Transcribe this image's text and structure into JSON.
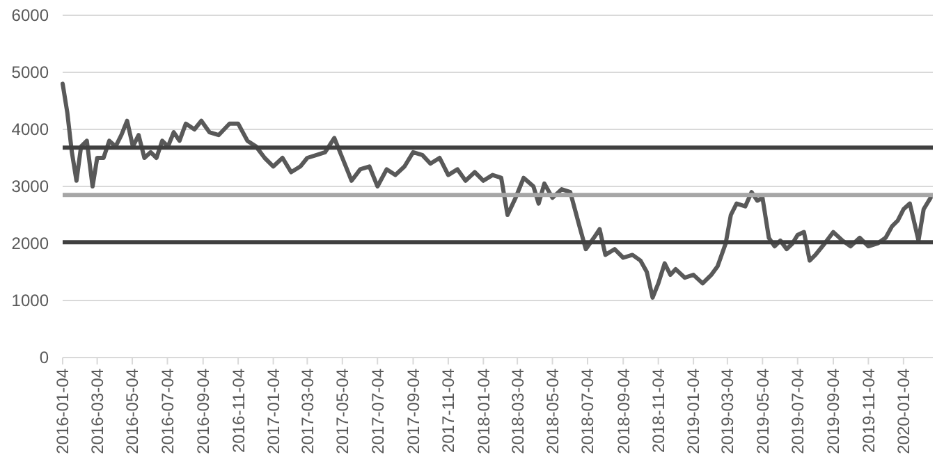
{
  "chart_data": {
    "type": "line",
    "xlim": [
      "2016-01-04",
      "2020-02-24"
    ],
    "ylim": [
      0,
      6000
    ],
    "yticks": [
      0,
      1000,
      2000,
      3000,
      4000,
      5000,
      6000
    ],
    "xticks": [
      "2016-01-04",
      "2016-03-04",
      "2016-05-04",
      "2016-07-04",
      "2016-09-04",
      "2016-11-04",
      "2017-01-04",
      "2017-03-04",
      "2017-05-04",
      "2017-07-04",
      "2017-09-04",
      "2017-11-04",
      "2018-01-04",
      "2018-03-04",
      "2018-05-04",
      "2018-07-04",
      "2018-09-04",
      "2018-11-04",
      "2019-01-04",
      "2019-03-04",
      "2019-05-04",
      "2019-07-04",
      "2019-09-04",
      "2019-11-04",
      "2020-01-04"
    ],
    "grid": "y",
    "marker": "none",
    "line_style": "solid",
    "ref_lines": [
      {
        "axis": "y",
        "value": 3680,
        "color": "#404040"
      },
      {
        "axis": "y",
        "value": 2850,
        "color": "#a6a6a6"
      },
      {
        "axis": "y",
        "value": 2020,
        "color": "#404040"
      }
    ],
    "series": [
      {
        "color": "#595959",
        "x": [
          "2016-01-04",
          "2016-01-12",
          "2016-01-20",
          "2016-01-28",
          "2016-02-05",
          "2016-02-15",
          "2016-02-25",
          "2016-03-04",
          "2016-03-15",
          "2016-03-25",
          "2016-04-05",
          "2016-04-15",
          "2016-04-25",
          "2016-05-05",
          "2016-05-15",
          "2016-05-25",
          "2016-06-05",
          "2016-06-15",
          "2016-06-25",
          "2016-07-05",
          "2016-07-15",
          "2016-07-25",
          "2016-08-05",
          "2016-08-20",
          "2016-09-01",
          "2016-09-15",
          "2016-10-01",
          "2016-10-20",
          "2016-11-04",
          "2016-11-20",
          "2016-12-05",
          "2016-12-20",
          "2017-01-04",
          "2017-01-20",
          "2017-02-04",
          "2017-02-20",
          "2017-03-04",
          "2017-03-20",
          "2017-04-04",
          "2017-04-20",
          "2017-05-04",
          "2017-05-20",
          "2017-06-04",
          "2017-06-20",
          "2017-07-04",
          "2017-07-20",
          "2017-08-04",
          "2017-08-20",
          "2017-09-04",
          "2017-09-20",
          "2017-10-04",
          "2017-10-20",
          "2017-11-04",
          "2017-11-20",
          "2017-12-04",
          "2017-12-20",
          "2018-01-04",
          "2018-01-20",
          "2018-02-04",
          "2018-02-15",
          "2018-03-01",
          "2018-03-15",
          "2018-04-01",
          "2018-04-10",
          "2018-04-20",
          "2018-05-04",
          "2018-05-20",
          "2018-06-04",
          "2018-06-20",
          "2018-07-01",
          "2018-07-15",
          "2018-07-25",
          "2018-08-04",
          "2018-08-20",
          "2018-09-04",
          "2018-09-20",
          "2018-10-04",
          "2018-10-15",
          "2018-10-25",
          "2018-11-04",
          "2018-11-15",
          "2018-11-25",
          "2018-12-04",
          "2018-12-20",
          "2019-01-04",
          "2019-01-20",
          "2019-02-04",
          "2019-02-15",
          "2019-03-01",
          "2019-03-10",
          "2019-03-20",
          "2019-04-04",
          "2019-04-15",
          "2019-04-25",
          "2019-05-04",
          "2019-05-15",
          "2019-05-25",
          "2019-06-04",
          "2019-06-15",
          "2019-06-25",
          "2019-07-04",
          "2019-07-15",
          "2019-07-25",
          "2019-08-04",
          "2019-08-20",
          "2019-09-04",
          "2019-09-20",
          "2019-10-04",
          "2019-10-20",
          "2019-11-04",
          "2019-11-20",
          "2019-12-04",
          "2019-12-15",
          "2019-12-25",
          "2020-01-04",
          "2020-01-15",
          "2020-01-22",
          "2020-01-30",
          "2020-02-08",
          "2020-02-20"
        ],
        "values": [
          4800,
          4300,
          3600,
          3100,
          3700,
          3800,
          3000,
          3500,
          3500,
          3800,
          3700,
          3900,
          4150,
          3700,
          3900,
          3500,
          3600,
          3500,
          3800,
          3700,
          3950,
          3800,
          4100,
          4000,
          4150,
          3950,
          3900,
          4100,
          4100,
          3800,
          3700,
          3500,
          3350,
          3500,
          3250,
          3350,
          3500,
          3550,
          3600,
          3850,
          3500,
          3100,
          3300,
          3350,
          3000,
          3300,
          3200,
          3350,
          3600,
          3550,
          3400,
          3500,
          3200,
          3300,
          3100,
          3250,
          3100,
          3200,
          3150,
          2500,
          2800,
          3150,
          3000,
          2700,
          3050,
          2800,
          2950,
          2900,
          2300,
          1900,
          2100,
          2250,
          1800,
          1900,
          1750,
          1800,
          1700,
          1500,
          1050,
          1300,
          1650,
          1450,
          1550,
          1400,
          1450,
          1300,
          1450,
          1600,
          2000,
          2500,
          2700,
          2650,
          2900,
          2750,
          2800,
          2100,
          1950,
          2050,
          1900,
          2000,
          2150,
          2200,
          1700,
          1800,
          2000,
          2200,
          2050,
          1950,
          2100,
          1950,
          2000,
          2100,
          2300,
          2400,
          2600,
          2700,
          2400,
          2050,
          2600,
          2800
        ]
      }
    ]
  }
}
